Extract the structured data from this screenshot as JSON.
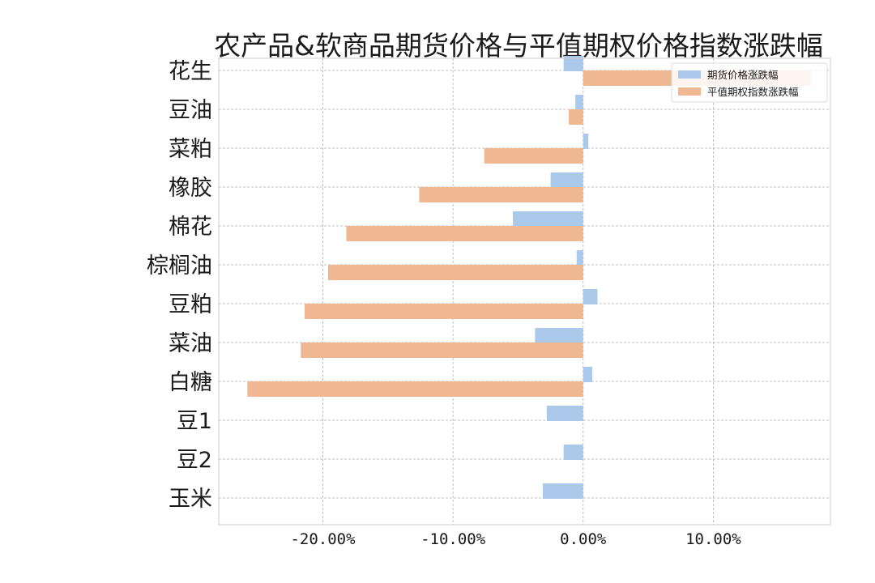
{
  "chart_data": {
    "type": "bar",
    "orientation": "horizontal",
    "title": "农产品&软商品期货价格与平值期权价格指数涨跌幅",
    "xlabel": "",
    "ylabel": "",
    "xlim": [
      -0.28,
      0.19
    ],
    "xticks": [
      -0.2,
      -0.1,
      0.0,
      0.1
    ],
    "xtick_labels": [
      "-20.00%",
      "-10.00%",
      "0.00%",
      "10.00%"
    ],
    "grid": true,
    "legend_position": "upper right",
    "categories": [
      "花生",
      "豆油",
      "菜粕",
      "橡胶",
      "棉花",
      "棕榈油",
      "豆粕",
      "菜油",
      "白糖",
      "豆1",
      "豆2",
      "玉米"
    ],
    "series": [
      {
        "name": "期货价格涨跌幅",
        "color": "#abc9ea",
        "values": [
          -0.015,
          -0.006,
          0.004,
          -0.025,
          -0.054,
          -0.005,
          0.011,
          -0.037,
          0.007,
          -0.028,
          -0.015,
          -0.031
        ]
      },
      {
        "name": "平值期权指数涨跌幅",
        "color": "#efb792",
        "values": [
          0.175,
          -0.011,
          -0.076,
          -0.126,
          -0.182,
          -0.196,
          -0.214,
          -0.217,
          -0.258,
          null,
          null,
          null
        ]
      }
    ]
  }
}
